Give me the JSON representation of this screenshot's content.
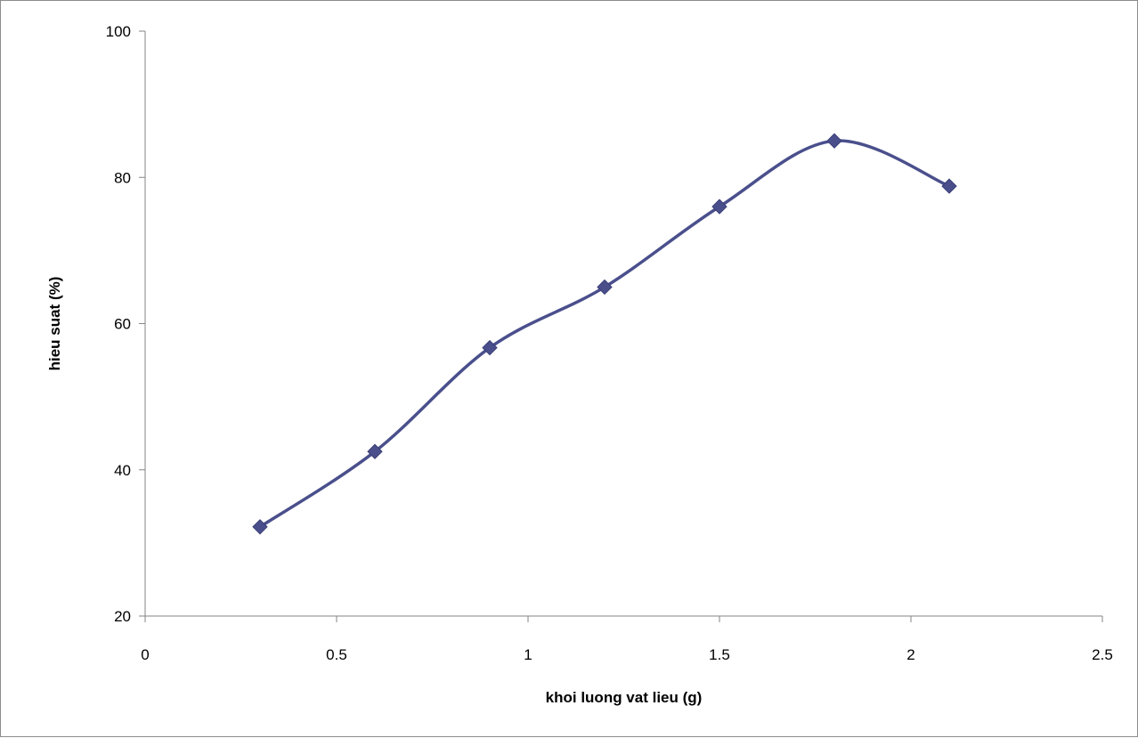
{
  "chart_data": {
    "type": "scatter",
    "title": "",
    "xlabel": "khoi luong vat lieu (g)",
    "ylabel": "hieu suat (%)",
    "xlim": [
      0,
      2.5
    ],
    "ylim": [
      20,
      100
    ],
    "xticks": [
      "0",
      "0.5",
      "1",
      "1.5",
      "2",
      "2.5"
    ],
    "yticks": [
      "20",
      "40",
      "60",
      "80",
      "100"
    ],
    "grid": false,
    "legend": "none",
    "smoothed": true,
    "marker": "diamond",
    "color": "#4a4f8c",
    "series": [
      {
        "x": [
          0.3,
          0.6,
          0.9,
          1.2,
          1.5,
          1.8,
          2.1
        ],
        "values": [
          32.2,
          42.5,
          56.7,
          65.0,
          76.0,
          85.0,
          78.8
        ]
      }
    ]
  }
}
